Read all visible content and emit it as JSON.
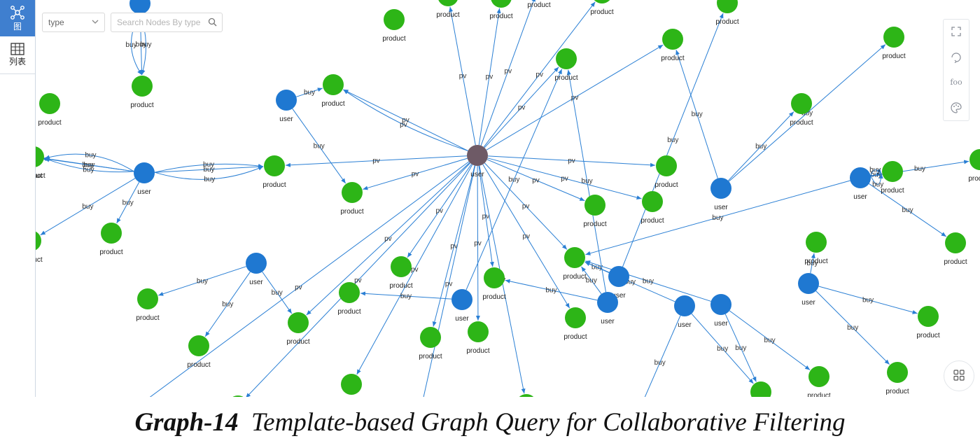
{
  "sidebar": {
    "items": [
      {
        "label": "图",
        "icon": "graph-view-icon"
      },
      {
        "label": "列表",
        "icon": "table-view-icon"
      }
    ]
  },
  "filter": {
    "type_value": "type",
    "search_placeholder": "Search Nodes By type"
  },
  "toolbar": {
    "items": [
      {
        "icon": "fullscreen-icon"
      },
      {
        "icon": "3d-rotate-icon"
      },
      {
        "icon": "label-toggle-icon",
        "text": "foo"
      },
      {
        "icon": "palette-icon"
      }
    ]
  },
  "colors": {
    "user_node": "#1f78d1",
    "product_node": "#2db517",
    "center_node": "#6e5a66",
    "edge": "#2a7fd4",
    "active_tab": "#3f7fcf"
  },
  "graph": {
    "nodes": [
      {
        "id": "c",
        "type": "user",
        "center": true
      },
      {
        "id": "u1",
        "type": "user"
      },
      {
        "id": "u2",
        "type": "user"
      },
      {
        "id": "u3",
        "type": "user"
      },
      {
        "id": "u4",
        "type": "user"
      },
      {
        "id": "u5",
        "type": "user"
      },
      {
        "id": "u6",
        "type": "user"
      },
      {
        "id": "u7",
        "type": "user"
      },
      {
        "id": "u8",
        "type": "user"
      },
      {
        "id": "u9",
        "type": "user"
      },
      {
        "id": "u10",
        "type": "user"
      },
      {
        "id": "u11",
        "type": "user"
      },
      {
        "id": "u12",
        "type": "user"
      },
      {
        "id": "p1",
        "type": "product"
      },
      {
        "id": "p2",
        "type": "product"
      },
      {
        "id": "p3",
        "type": "product"
      },
      {
        "id": "p4",
        "type": "product"
      },
      {
        "id": "p5",
        "type": "product"
      },
      {
        "id": "p6",
        "type": "product"
      },
      {
        "id": "p7",
        "type": "product"
      },
      {
        "id": "p8",
        "type": "product"
      },
      {
        "id": "p9",
        "type": "product"
      },
      {
        "id": "p10",
        "type": "product"
      },
      {
        "id": "p11",
        "type": "product"
      },
      {
        "id": "p12",
        "type": "product"
      },
      {
        "id": "p13",
        "type": "product"
      },
      {
        "id": "p14",
        "type": "product"
      },
      {
        "id": "p15",
        "type": "product"
      },
      {
        "id": "p16",
        "type": "product"
      },
      {
        "id": "p17",
        "type": "product"
      },
      {
        "id": "p18",
        "type": "product"
      },
      {
        "id": "p19",
        "type": "product"
      },
      {
        "id": "p20",
        "type": "product"
      },
      {
        "id": "p21",
        "type": "product"
      },
      {
        "id": "p22",
        "type": "product"
      },
      {
        "id": "p23",
        "type": "product"
      },
      {
        "id": "p24",
        "type": "product"
      },
      {
        "id": "p25",
        "type": "product"
      },
      {
        "id": "p26",
        "type": "product"
      },
      {
        "id": "p27",
        "type": "product"
      },
      {
        "id": "p28",
        "type": "product"
      },
      {
        "id": "p29",
        "type": "product"
      },
      {
        "id": "p30",
        "type": "product"
      },
      {
        "id": "p31",
        "type": "product"
      },
      {
        "id": "p32",
        "type": "product"
      },
      {
        "id": "p33",
        "type": "product"
      },
      {
        "id": "p34",
        "type": "product"
      },
      {
        "id": "p35",
        "type": "product"
      },
      {
        "id": "p36",
        "type": "product"
      },
      {
        "id": "p37",
        "type": "product"
      },
      {
        "id": "p38",
        "type": "product"
      },
      {
        "id": "p39",
        "type": "product"
      },
      {
        "id": "p40",
        "type": "product"
      },
      {
        "id": "p41",
        "type": "product"
      },
      {
        "id": "p42",
        "type": "product"
      },
      {
        "id": "p43",
        "type": "product"
      },
      {
        "id": "p44",
        "type": "product"
      },
      {
        "id": "p45",
        "type": "product"
      },
      {
        "id": "p46",
        "type": "product"
      }
    ],
    "edges": [
      {
        "from": "c",
        "to": "p4",
        "label": "pv"
      },
      {
        "from": "c",
        "to": "p4",
        "label": "pv"
      },
      {
        "from": "c",
        "to": "p5",
        "label": "pv"
      },
      {
        "from": "c",
        "to": "p6",
        "label": "pv"
      },
      {
        "from": "c",
        "to": "p7",
        "label": "pv"
      },
      {
        "from": "c",
        "to": "p8",
        "label": "pv"
      },
      {
        "from": "c",
        "to": "p9",
        "label": "pv"
      },
      {
        "from": "c",
        "to": "p10",
        "label": "pv"
      },
      {
        "from": "c",
        "to": "p11",
        "label": "pv"
      },
      {
        "from": "c",
        "to": "p12",
        "label": "pv"
      },
      {
        "from": "c",
        "to": "p13",
        "label": "pv"
      },
      {
        "from": "c",
        "to": "p14",
        "label": "pv"
      },
      {
        "from": "c",
        "to": "p15",
        "label": "pv"
      },
      {
        "from": "c",
        "to": "p16",
        "label": "pv"
      },
      {
        "from": "c",
        "to": "p17",
        "label": "pv"
      },
      {
        "from": "c",
        "to": "p18",
        "label": "pv"
      },
      {
        "from": "c",
        "to": "p19",
        "label": "pv"
      },
      {
        "from": "c",
        "to": "p20",
        "label": "pv"
      },
      {
        "from": "c",
        "to": "p21",
        "label": "pv"
      },
      {
        "from": "c",
        "to": "p22",
        "label": "pv"
      },
      {
        "from": "c",
        "to": "p23",
        "label": "pv"
      },
      {
        "from": "c",
        "to": "p24",
        "label": "pv"
      },
      {
        "from": "c",
        "to": "p25",
        "label": "pv"
      },
      {
        "from": "c",
        "to": "p26",
        "label": "pv"
      },
      {
        "from": "c",
        "to": "p27",
        "label": "pv"
      },
      {
        "from": "u1",
        "to": "p1",
        "label": "buy"
      },
      {
        "from": "u1",
        "to": "p1",
        "label": "buy"
      },
      {
        "from": "u1",
        "to": "p1",
        "label": "buy"
      },
      {
        "from": "u2",
        "to": "p28",
        "label": "buy"
      },
      {
        "from": "u2",
        "to": "p29",
        "label": "buy"
      },
      {
        "from": "u2",
        "to": "p29",
        "label": "buy"
      },
      {
        "from": "u2",
        "to": "p29",
        "label": "buy"
      },
      {
        "from": "u2",
        "to": "p30",
        "label": "buy"
      },
      {
        "from": "u2",
        "to": "p31",
        "label": "buy"
      },
      {
        "from": "u2",
        "to": "p8",
        "label": "buy"
      },
      {
        "from": "u2",
        "to": "p8",
        "label": "buy"
      },
      {
        "from": "u2",
        "to": "p8",
        "label": "buy"
      },
      {
        "from": "u3",
        "to": "p6",
        "label": "buy"
      },
      {
        "from": "u3",
        "to": "p4",
        "label": "buy"
      },
      {
        "from": "u4",
        "to": "p9",
        "label": "buy"
      },
      {
        "from": "u4",
        "to": "p32",
        "label": "buy"
      },
      {
        "from": "u4",
        "to": "p33",
        "label": "buy"
      },
      {
        "from": "u5",
        "to": "p34",
        "label": "buy"
      },
      {
        "from": "u5",
        "to": "p20",
        "label": "buy"
      },
      {
        "from": "u6",
        "to": "p15",
        "label": "buy"
      },
      {
        "from": "u6",
        "to": "p35",
        "label": "buy"
      },
      {
        "from": "u7",
        "to": "p15",
        "label": "buy"
      },
      {
        "from": "u7",
        "to": "p13",
        "label": "buy"
      },
      {
        "from": "u7",
        "to": "p20",
        "label": "buy"
      },
      {
        "from": "u8",
        "to": "p15",
        "label": "buy"
      },
      {
        "from": "u8",
        "to": "p36",
        "label": "buy"
      },
      {
        "from": "u8",
        "to": "p37",
        "label": "buy"
      },
      {
        "from": "u9",
        "to": "p36",
        "label": "buy"
      },
      {
        "from": "u9",
        "to": "p38",
        "label": "buy"
      },
      {
        "from": "u9",
        "to": "p15",
        "label": "buy"
      },
      {
        "from": "u10",
        "to": "p39",
        "label": "buy"
      },
      {
        "from": "u10",
        "to": "p39",
        "label": "buy"
      },
      {
        "from": "u10",
        "to": "p39",
        "label": "buy"
      },
      {
        "from": "u10",
        "to": "p15",
        "label": "buy"
      },
      {
        "from": "u10",
        "to": "p40",
        "label": "buy"
      },
      {
        "from": "u10",
        "to": "p41",
        "label": "buy"
      },
      {
        "from": "u11",
        "to": "p42",
        "label": "buy"
      },
      {
        "from": "u11",
        "to": "p43",
        "label": "buy"
      },
      {
        "from": "u11",
        "to": "p44",
        "label": "buy"
      },
      {
        "from": "u12",
        "to": "p45",
        "label": "buy"
      },
      {
        "from": "u12",
        "to": "p46",
        "label": "buy"
      },
      {
        "from": "u12",
        "to": "p19",
        "label": "buy"
      }
    ]
  },
  "caption": {
    "prefix": "Graph-14",
    "text": "Template-based Graph Query for Collaborative Filtering"
  }
}
